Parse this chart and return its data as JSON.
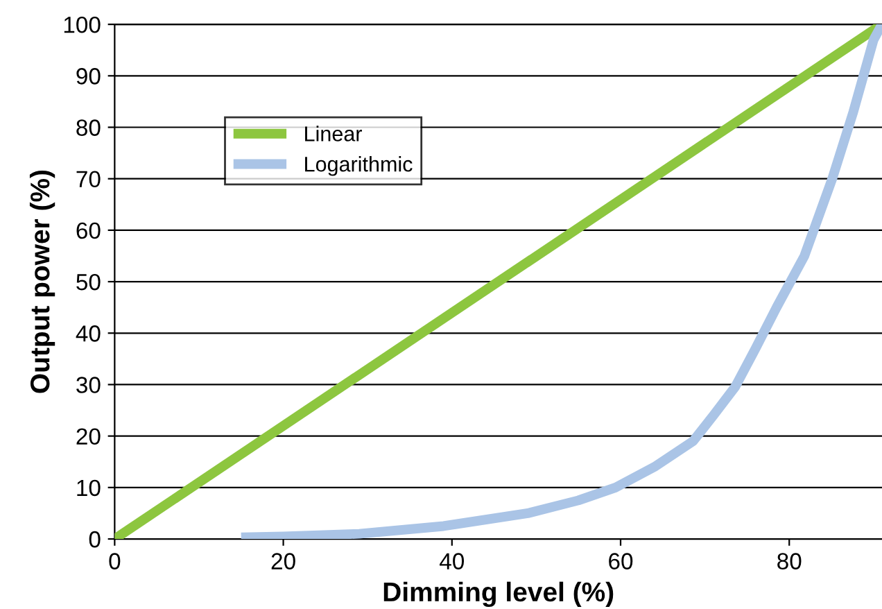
{
  "chart_data": {
    "type": "line",
    "xlabel": "Dimming level (%)",
    "ylabel": "Output power (%)",
    "xlim": [
      0,
      91
    ],
    "ylim": [
      0,
      100
    ],
    "xticks": [
      0,
      20,
      40,
      60,
      80
    ],
    "yticks": [
      0,
      10,
      20,
      30,
      40,
      50,
      60,
      70,
      80,
      90,
      100
    ],
    "grid": "y",
    "legend": "top left",
    "marker": "none",
    "line_style": "solid",
    "series": [
      {
        "name": "Linear",
        "color": "#8dc63f",
        "x": [
          0,
          91
        ],
        "values": [
          0,
          100
        ]
      },
      {
        "name": "Logarithmic",
        "color": "#aac4e6",
        "x": [
          15,
          20,
          29,
          39,
          49,
          55,
          59.4,
          64,
          68.6,
          71,
          73.6,
          76,
          78.5,
          81.8,
          85.1,
          87.6,
          90,
          91
        ],
        "values": [
          0.3,
          0.5,
          1,
          2.5,
          5,
          7.5,
          10,
          14,
          19,
          24,
          29.6,
          37,
          45,
          55,
          70,
          83,
          97,
          100
        ]
      }
    ]
  }
}
